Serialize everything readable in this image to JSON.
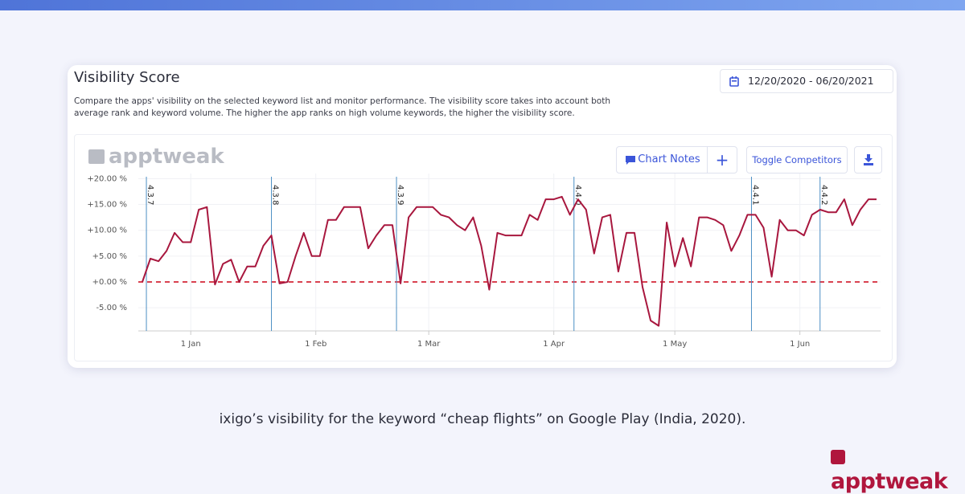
{
  "card": {
    "title": "Visibility Score",
    "description": "Compare the apps' visibility on the selected keyword list and monitor performance. The visibility score takes into account both average rank and keyword volume. The higher the app ranks on high volume keywords, the higher the visibility score.",
    "date_range": "12/20/2020 - 06/20/2021",
    "watermark": "apptweak",
    "buttons": [
      "Chart Notes",
      "+",
      "Toggle Competitors"
    ]
  },
  "chart_data": {
    "type": "line",
    "x": [
      "2020-12-20",
      "2020-12-22",
      "2020-12-24",
      "2020-12-26",
      "2020-12-28",
      "2020-12-30",
      "2021-01-01",
      "2021-01-03",
      "2021-01-05",
      "2021-01-07",
      "2021-01-09",
      "2021-01-11",
      "2021-01-13",
      "2021-01-15",
      "2021-01-17",
      "2021-01-19",
      "2021-01-21",
      "2021-01-23",
      "2021-01-25",
      "2021-01-27",
      "2021-01-29",
      "2021-01-31",
      "2021-02-02",
      "2021-02-04",
      "2021-02-06",
      "2021-02-08",
      "2021-02-10",
      "2021-02-12",
      "2021-02-14",
      "2021-02-16",
      "2021-02-18",
      "2021-02-20",
      "2021-02-22",
      "2021-02-24",
      "2021-02-26",
      "2021-02-28",
      "2021-03-02",
      "2021-03-04",
      "2021-03-06",
      "2021-03-08",
      "2021-03-10",
      "2021-03-12",
      "2021-03-14",
      "2021-03-16",
      "2021-03-18",
      "2021-03-20",
      "2021-03-22",
      "2021-03-24",
      "2021-03-26",
      "2021-03-28",
      "2021-03-30",
      "2021-04-01",
      "2021-04-03",
      "2021-04-05",
      "2021-04-07",
      "2021-04-09",
      "2021-04-11",
      "2021-04-13",
      "2021-04-15",
      "2021-04-17",
      "2021-04-19",
      "2021-04-21",
      "2021-04-23",
      "2021-04-25",
      "2021-04-27",
      "2021-04-29",
      "2021-05-01",
      "2021-05-03",
      "2021-05-05",
      "2021-05-07",
      "2021-05-09",
      "2021-05-11",
      "2021-05-13",
      "2021-05-15",
      "2021-05-17",
      "2021-05-19",
      "2021-05-21",
      "2021-05-23",
      "2021-05-25",
      "2021-05-27",
      "2021-05-29",
      "2021-05-31",
      "2021-06-02",
      "2021-06-04",
      "2021-06-06",
      "2021-06-08",
      "2021-06-10",
      "2021-06-12",
      "2021-06-14",
      "2021-06-16",
      "2021-06-18",
      "2021-06-20"
    ],
    "series": [
      {
        "color": "#a8173e",
        "values": [
          0,
          4.5,
          4,
          6,
          9.5,
          7.7,
          7.7,
          14,
          14.5,
          -0.5,
          3.5,
          4.3,
          0,
          3,
          3,
          7,
          9,
          -0.3,
          0,
          5,
          9.5,
          5,
          5,
          12,
          12,
          14.5,
          14.5,
          14.5,
          6.5,
          9,
          11,
          11,
          -0.3,
          12.5,
          14.5,
          14.5,
          14.5,
          13,
          12.5,
          11,
          10,
          12.5,
          7,
          -1.5,
          9.5,
          9,
          9,
          9,
          13,
          12,
          16,
          16,
          16.5,
          13,
          16,
          14,
          5.5,
          12.5,
          13,
          2,
          9.5,
          9.5,
          -1,
          -7.5,
          -8.5,
          11.5,
          3,
          8.5,
          3,
          12.5,
          12.5,
          12,
          11,
          6,
          9,
          13,
          13,
          10.5,
          1,
          12,
          10,
          10,
          9,
          13,
          14,
          13.5,
          13.5,
          16,
          11,
          14,
          16,
          16
        ]
      }
    ],
    "xlim": [
      "2020-12-19",
      "2021-06-21"
    ],
    "xticks": [
      {
        "value": "2021-01-01",
        "label": "1 Jan"
      },
      {
        "value": "2021-02-01",
        "label": "1 Feb"
      },
      {
        "value": "2021-03-01",
        "label": "1 Mar"
      },
      {
        "value": "2021-04-01",
        "label": "1 Apr"
      },
      {
        "value": "2021-05-01",
        "label": "1 May"
      },
      {
        "value": "2021-06-01",
        "label": "1 Jun"
      }
    ],
    "ylim": [
      -9.5,
      21
    ],
    "yticks": [
      {
        "value": -5,
        "label": "-5.00 %"
      },
      {
        "value": 0,
        "label": "+0.00 %"
      },
      {
        "value": 5,
        "label": "+5.00 %"
      },
      {
        "value": 10,
        "label": "+10.00 %"
      },
      {
        "value": 15,
        "label": "+15.00 %"
      },
      {
        "value": 20,
        "label": "+20.00 %"
      }
    ],
    "grid": true,
    "reference_line": {
      "value": 0,
      "color": "#d9414f"
    },
    "annotations": [
      {
        "x": "2020-12-21",
        "label": "4.3.7"
      },
      {
        "x": "2021-01-21",
        "label": "4.3.8"
      },
      {
        "x": "2021-02-21",
        "label": "4.3.9"
      },
      {
        "x": "2021-04-06",
        "label": "4.4.0"
      },
      {
        "x": "2021-05-20",
        "label": "4.4.1"
      },
      {
        "x": "2021-06-06",
        "label": "4.4.2"
      }
    ]
  },
  "caption": "ixigo’s visibility for the keyword “cheap flights” on Google Play (India, 2020).",
  "logo": "apptweak"
}
